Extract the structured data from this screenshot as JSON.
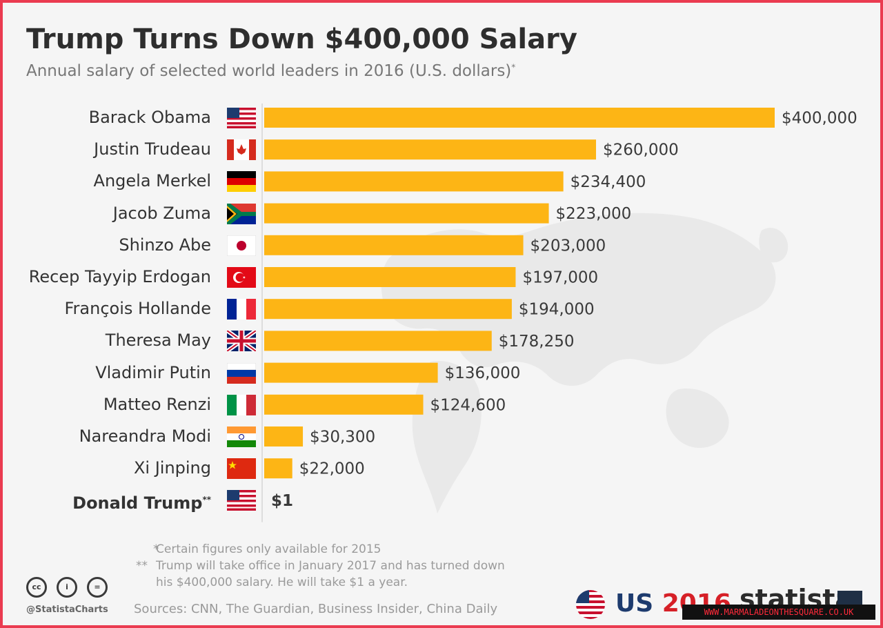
{
  "title": "Trump Turns Down $400,000 Salary",
  "subtitle": "Annual salary of selected world leaders in 2016 (U.S. dollars)",
  "subtitle_mark": "*",
  "chart_data": {
    "type": "bar",
    "orientation": "horizontal",
    "categories": [
      "Barack Obama",
      "Justin Trudeau",
      "Angela Merkel",
      "Jacob Zuma",
      "Shinzo Abe",
      "Recep Tayyip Erdogan",
      "François Hollande",
      "Theresa May",
      "Vladimir Putin",
      "Matteo Renzi",
      "Nareandra Modi",
      "Xi Jinping",
      "Donald Trump"
    ],
    "category_marks": [
      "",
      "",
      "",
      "",
      "",
      "",
      "",
      "",
      "",
      "",
      "",
      "",
      "**"
    ],
    "values": [
      400000,
      260000,
      234400,
      223000,
      203000,
      197000,
      194000,
      178250,
      136000,
      124600,
      30300,
      22000,
      1
    ],
    "value_labels": [
      "$400,000",
      "$260,000",
      "$234,400",
      "$223,000",
      "$203,000",
      "$197,000",
      "$194,000",
      "$178,250",
      "$136,000",
      "$124,600",
      "$30,300",
      "$22,000",
      "$1"
    ],
    "bold_categories": [
      "Donald Trump"
    ],
    "flags": [
      "us-flag-icon",
      "canada-flag-icon",
      "germany-flag-icon",
      "south-africa-flag-icon",
      "japan-flag-icon",
      "turkey-flag-icon",
      "france-flag-icon",
      "uk-flag-icon",
      "russia-flag-icon",
      "italy-flag-icon",
      "india-flag-icon",
      "china-flag-icon",
      "us-flag-icon"
    ],
    "xlim": [
      0,
      400000
    ],
    "bar_color": "#fdb515",
    "grid": false,
    "legend": "none"
  },
  "footnotes": {
    "star_mark": "*",
    "star_text": "Certain figures only available for 2015",
    "double_mark": "**",
    "double_text_line1": "Trump will take office in January 2017 and has turned down",
    "double_text_line2": "his $400,000 salary. He will take $1 a year."
  },
  "footer": {
    "license_icons": [
      "cc-icon",
      "attribution-icon",
      "no-derivatives-icon"
    ],
    "handle": "@StatistaCharts",
    "sources": "Sources: CNN, The Guardian, Business Insider, China Daily",
    "us_logo_text": "US",
    "us_logo_year": "2016",
    "brand": "statista",
    "watermark": "WWW.MARMALADEONTHESQUARE.CO.UK"
  },
  "colors": {
    "frame_border": "#ea3b50",
    "bar": "#fdb515",
    "title": "#2e2e2e",
    "subtitle": "#777777"
  }
}
